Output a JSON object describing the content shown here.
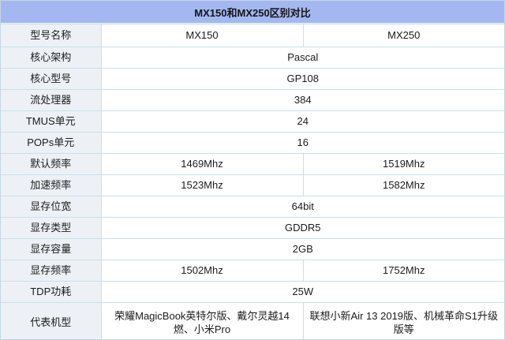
{
  "title": "MX150和MX250区别对比",
  "colors": {
    "title_bar_bg": "#a4b7f0",
    "label_column_bg": "#edf1f6",
    "grid_line": "#cadeed",
    "text": "#1b1b1b"
  },
  "table": {
    "header": {
      "label": "型号名称",
      "col1": "MX150",
      "col2": "MX250"
    },
    "rows": [
      {
        "label": "核心架构",
        "span": "Pascal"
      },
      {
        "label": "核心型号",
        "span": "GP108"
      },
      {
        "label": "流处理器",
        "span": "384"
      },
      {
        "label": "TMUS单元",
        "span": "24"
      },
      {
        "label": "POPs单元",
        "span": "16"
      },
      {
        "label": "默认频率",
        "mx150": "1469Mhz",
        "mx250": "1519Mhz",
        "mx250_bold": true
      },
      {
        "label": "加速频率",
        "mx150": "1523Mhz",
        "mx250": "1582Mhz",
        "mx250_bold": true
      },
      {
        "label": "显存位宽",
        "span": "64bit"
      },
      {
        "label": "显存类型",
        "span": "GDDR5"
      },
      {
        "label": "显存容量",
        "span": "2GB"
      },
      {
        "label": "显存频率",
        "mx150": "1502Mhz",
        "mx250": "1752Mhz",
        "mx250_bold": true
      },
      {
        "label": "TDP功耗",
        "span": "25W"
      },
      {
        "label": "代表机型",
        "mx150": "荣耀MagicBook英特尔版、戴尔灵越14燃、小米Pro",
        "mx250": "联想小新Air 13 2019版、机械革命S1升级版等",
        "tall": true
      }
    ]
  }
}
